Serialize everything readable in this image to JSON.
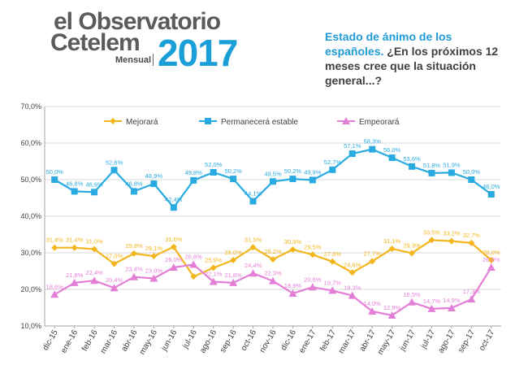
{
  "header": {
    "logo_line1": "el Observatorio",
    "logo_line2": "Cetelem",
    "logo_sub": "Mensual",
    "logo_year": "2017",
    "question_highlight": "Estado de ánimo de los españoles.",
    "question_text": " ¿En los próximos 12 meses cree que la situación general...?"
  },
  "colors": {
    "mejorara": "#f3b61f",
    "estable": "#29abe2",
    "empeorara": "#e47fd8",
    "accent": "#1a9fd8"
  },
  "chart_data": {
    "type": "line",
    "categories": [
      "dic-15",
      "ene-16",
      "feb-16",
      "mar-16",
      "abr-16",
      "may-16",
      "jun-16",
      "jul-16",
      "ago-16",
      "sep-16",
      "oct-16",
      "nov-16",
      "dic-16",
      "ene-17",
      "feb-17",
      "mar-17",
      "abr-17",
      "may-17",
      "jun-17",
      "jul-17",
      "ago-17",
      "sep-17",
      "oct-17"
    ],
    "ylim": [
      10,
      70
    ],
    "yticks": [
      "10,0%",
      "20,0%",
      "30,0%",
      "40,0%",
      "50,0%",
      "60,0%",
      "70,0%"
    ],
    "grid": true,
    "legend_position": "top",
    "series": [
      {
        "name": "Mejorará",
        "values": [
          31.4,
          31.4,
          31.0,
          27.0,
          29.8,
          29.1,
          31.6,
          23.5,
          25.9,
          28.0,
          31.5,
          28.2,
          30.9,
          29.5,
          27.6,
          24.6,
          27.7,
          31.1,
          29.9,
          33.5,
          33.2,
          32.7,
          28.0
        ],
        "labels": [
          "31,4%",
          "31,4%",
          "31,0%",
          "27,0%",
          "29,8%",
          "29,1%",
          "31,6%",
          "",
          "25,9%",
          "28,0%",
          "31,5%",
          "28,2%",
          "30,9%",
          "29,5%",
          "27,6%",
          "24,6%",
          "27,7%",
          "31,1%",
          "29,9%",
          "33,5%",
          "33,2%",
          "32,7%",
          "28,0%"
        ]
      },
      {
        "name": "Permanecerá estable",
        "values": [
          50.0,
          46.8,
          46.6,
          52.6,
          46.8,
          48.9,
          42.4,
          49.8,
          52.0,
          50.2,
          44.1,
          49.5,
          50.2,
          49.9,
          52.7,
          57.1,
          58.3,
          56.0,
          53.6,
          51.8,
          51.9,
          50.0,
          46.0
        ],
        "labels": [
          "50,0%",
          "46,8%",
          "46,6%",
          "52,6%",
          "46,8%",
          "48,9%",
          "42,4%",
          "49,8%",
          "52,0%",
          "50,2%",
          "44,1%",
          "49,5%",
          "50,2%",
          "49,9%",
          "52,7%",
          "57,1%",
          "58,3%",
          "56,0%",
          "53,6%",
          "51,8%",
          "51,9%",
          "50,0%",
          "46,0%"
        ]
      },
      {
        "name": "Empeorará",
        "values": [
          18.6,
          21.8,
          22.4,
          20.4,
          23.4,
          23.0,
          26.0,
          26.8,
          22.1,
          21.8,
          24.4,
          22.3,
          18.9,
          20.6,
          19.7,
          18.3,
          14.0,
          12.9,
          16.5,
          14.7,
          14.9,
          17.3,
          26.0
        ],
        "labels": [
          "18,6%",
          "21,8%",
          "22,4%",
          "20,4%",
          "23,4%",
          "23,0%",
          "26,0%",
          "26,8%",
          "22,1%",
          "21,8%",
          "24,4%",
          "22,3%",
          "18,9%",
          "20,6%",
          "19,7%",
          "18,3%",
          "14,0%",
          "12,9%",
          "16,5%",
          "14,7%",
          "14,9%",
          "17,3%",
          "26,0%"
        ]
      }
    ]
  }
}
